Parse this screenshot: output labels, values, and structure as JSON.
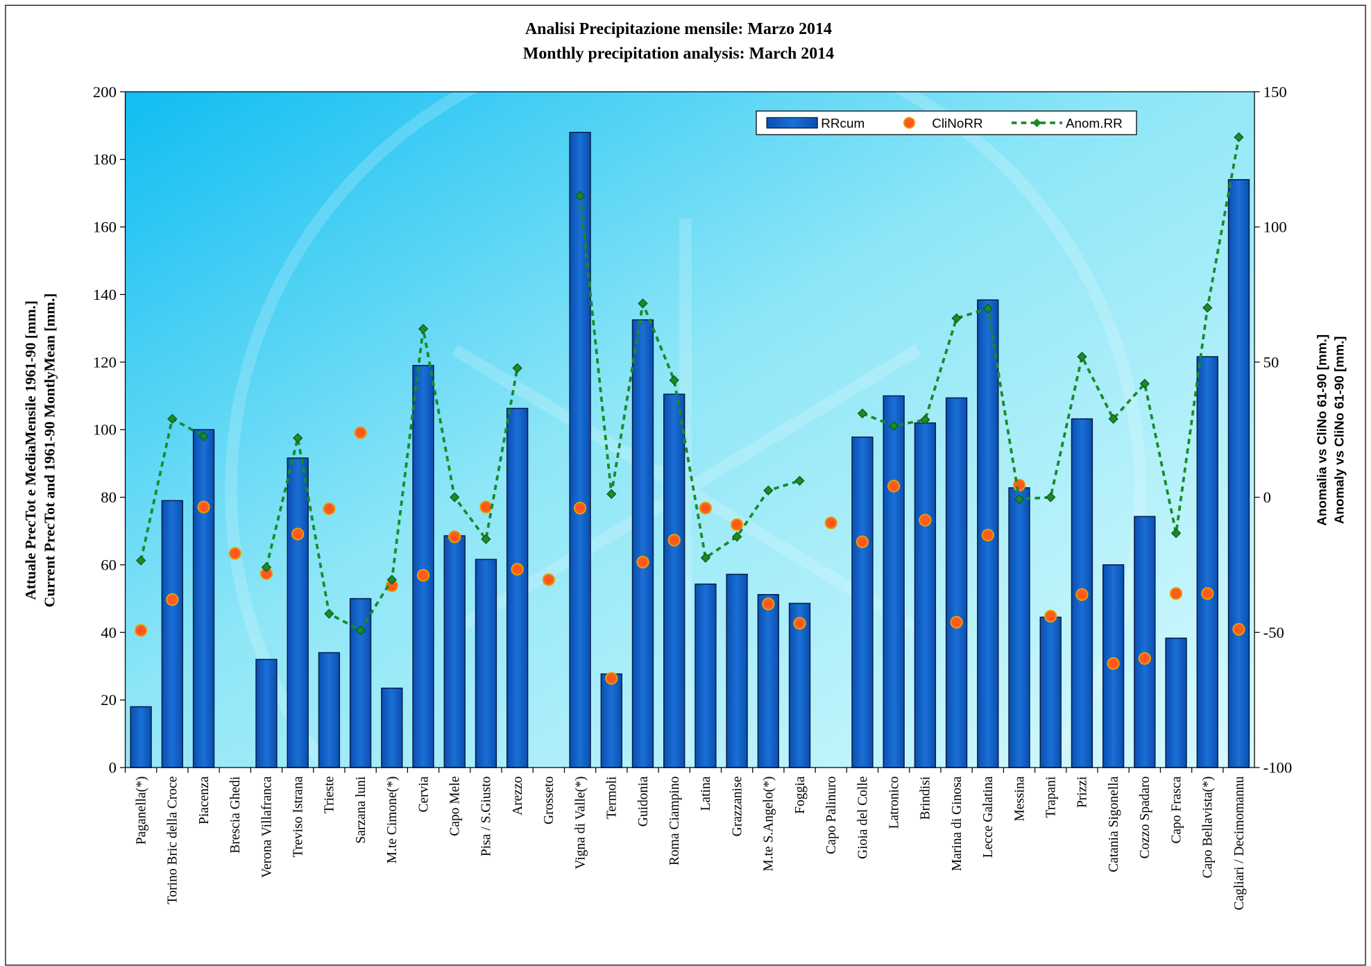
{
  "chart_data": {
    "type": "bar",
    "title": [
      "Analisi Precipitazione mensile: Marzo 2014",
      "Monthly precipitation analysis: March 2014"
    ],
    "y_label": [
      "Attuale PrecTot e MediaMensile 1961-90 [mm.]",
      "Current PrecTot and 1961-90 MontlyMean [mm.]"
    ],
    "y2_label": [
      "Anomalia vs CliNo 61-90 [mm.]",
      "Anomaly vs CliNo 61-90 [mm.]"
    ],
    "categories": [
      "Paganella(*)",
      "Torino Bric della Croce",
      "Piacenza",
      "Brescia Ghedi",
      "Verona Villafranca",
      "Treviso Istrana",
      "Trieste",
      "Sarzana luni",
      "M.te Cimone(*)",
      "Cervia",
      "Capo Mele",
      "Pisa / S.Giusto",
      "Arezzo",
      "Grosseto",
      "Vigna di Valle(*)",
      "Termoli",
      "Guidonia",
      "Roma Ciampino",
      "Latina",
      "Grazzanise",
      "M.te S.Angelo(*)",
      "Foggia",
      "Capo Palinuro",
      "Gioia del Colle",
      "Latronico",
      "Brindisi",
      "Marina di Ginosa",
      "Lecce Galatina",
      "Messina",
      "Trapani",
      "Prizzi",
      "Catania Sigonella",
      "Cozzo Spadaro",
      "Capo Frasca",
      "Capo Bellavista(*)",
      "Cagliari / Decimomannu"
    ],
    "series": [
      {
        "name": "RRcum",
        "type": "bar",
        "color": "#1464c8",
        "values": [
          18,
          79,
          100,
          null,
          32,
          91.6,
          34,
          50,
          23.5,
          119,
          68.6,
          61.6,
          106.3,
          null,
          188,
          27.7,
          132.5,
          110.5,
          54.3,
          57.2,
          51.2,
          48.6,
          null,
          97.8,
          110,
          102,
          109.4,
          138.4,
          82.8,
          44.5,
          103.2,
          60,
          74.3,
          38.3,
          121.6,
          174
        ]
      },
      {
        "name": "CliNoRR",
        "type": "scatter",
        "color": "#ff5a1e",
        "values": [
          40.6,
          49.7,
          77.1,
          63.4,
          57.4,
          69.1,
          76.6,
          99.1,
          53.8,
          56.9,
          68.3,
          77.1,
          58.7,
          55.6,
          76.8,
          26.4,
          60.8,
          67.3,
          76.8,
          71.9,
          48.4,
          42.7,
          72.4,
          66.8,
          83.3,
          73.2,
          43,
          68.8,
          83.6,
          44.8,
          51.2,
          30.8,
          32.3,
          51.5,
          51.5,
          40.9
        ]
      },
      {
        "name": "Anom.RR",
        "type": "line",
        "color": "#1a8a2a",
        "axis": "y2",
        "values": [
          -23.4,
          29,
          22.6,
          null,
          -25.9,
          21.9,
          -43.1,
          -49.2,
          -30.5,
          62.3,
          0,
          -15.5,
          47.8,
          null,
          111.5,
          1.2,
          71.7,
          43.3,
          -22.4,
          -14.6,
          2.5,
          6.1,
          null,
          31,
          26.4,
          28.7,
          66.2,
          69.8,
          -0.7,
          0,
          52,
          29,
          42,
          -13.3,
          70.1,
          133.2
        ]
      }
    ],
    "ylim": [
      0,
      200
    ],
    "yticks": [
      0,
      20,
      40,
      60,
      80,
      100,
      120,
      140,
      160,
      180,
      200
    ],
    "y2lim": [
      -100,
      150
    ],
    "y2ticks": [
      -100,
      -50,
      0,
      50,
      100,
      150
    ],
    "legend": "top-right"
  }
}
